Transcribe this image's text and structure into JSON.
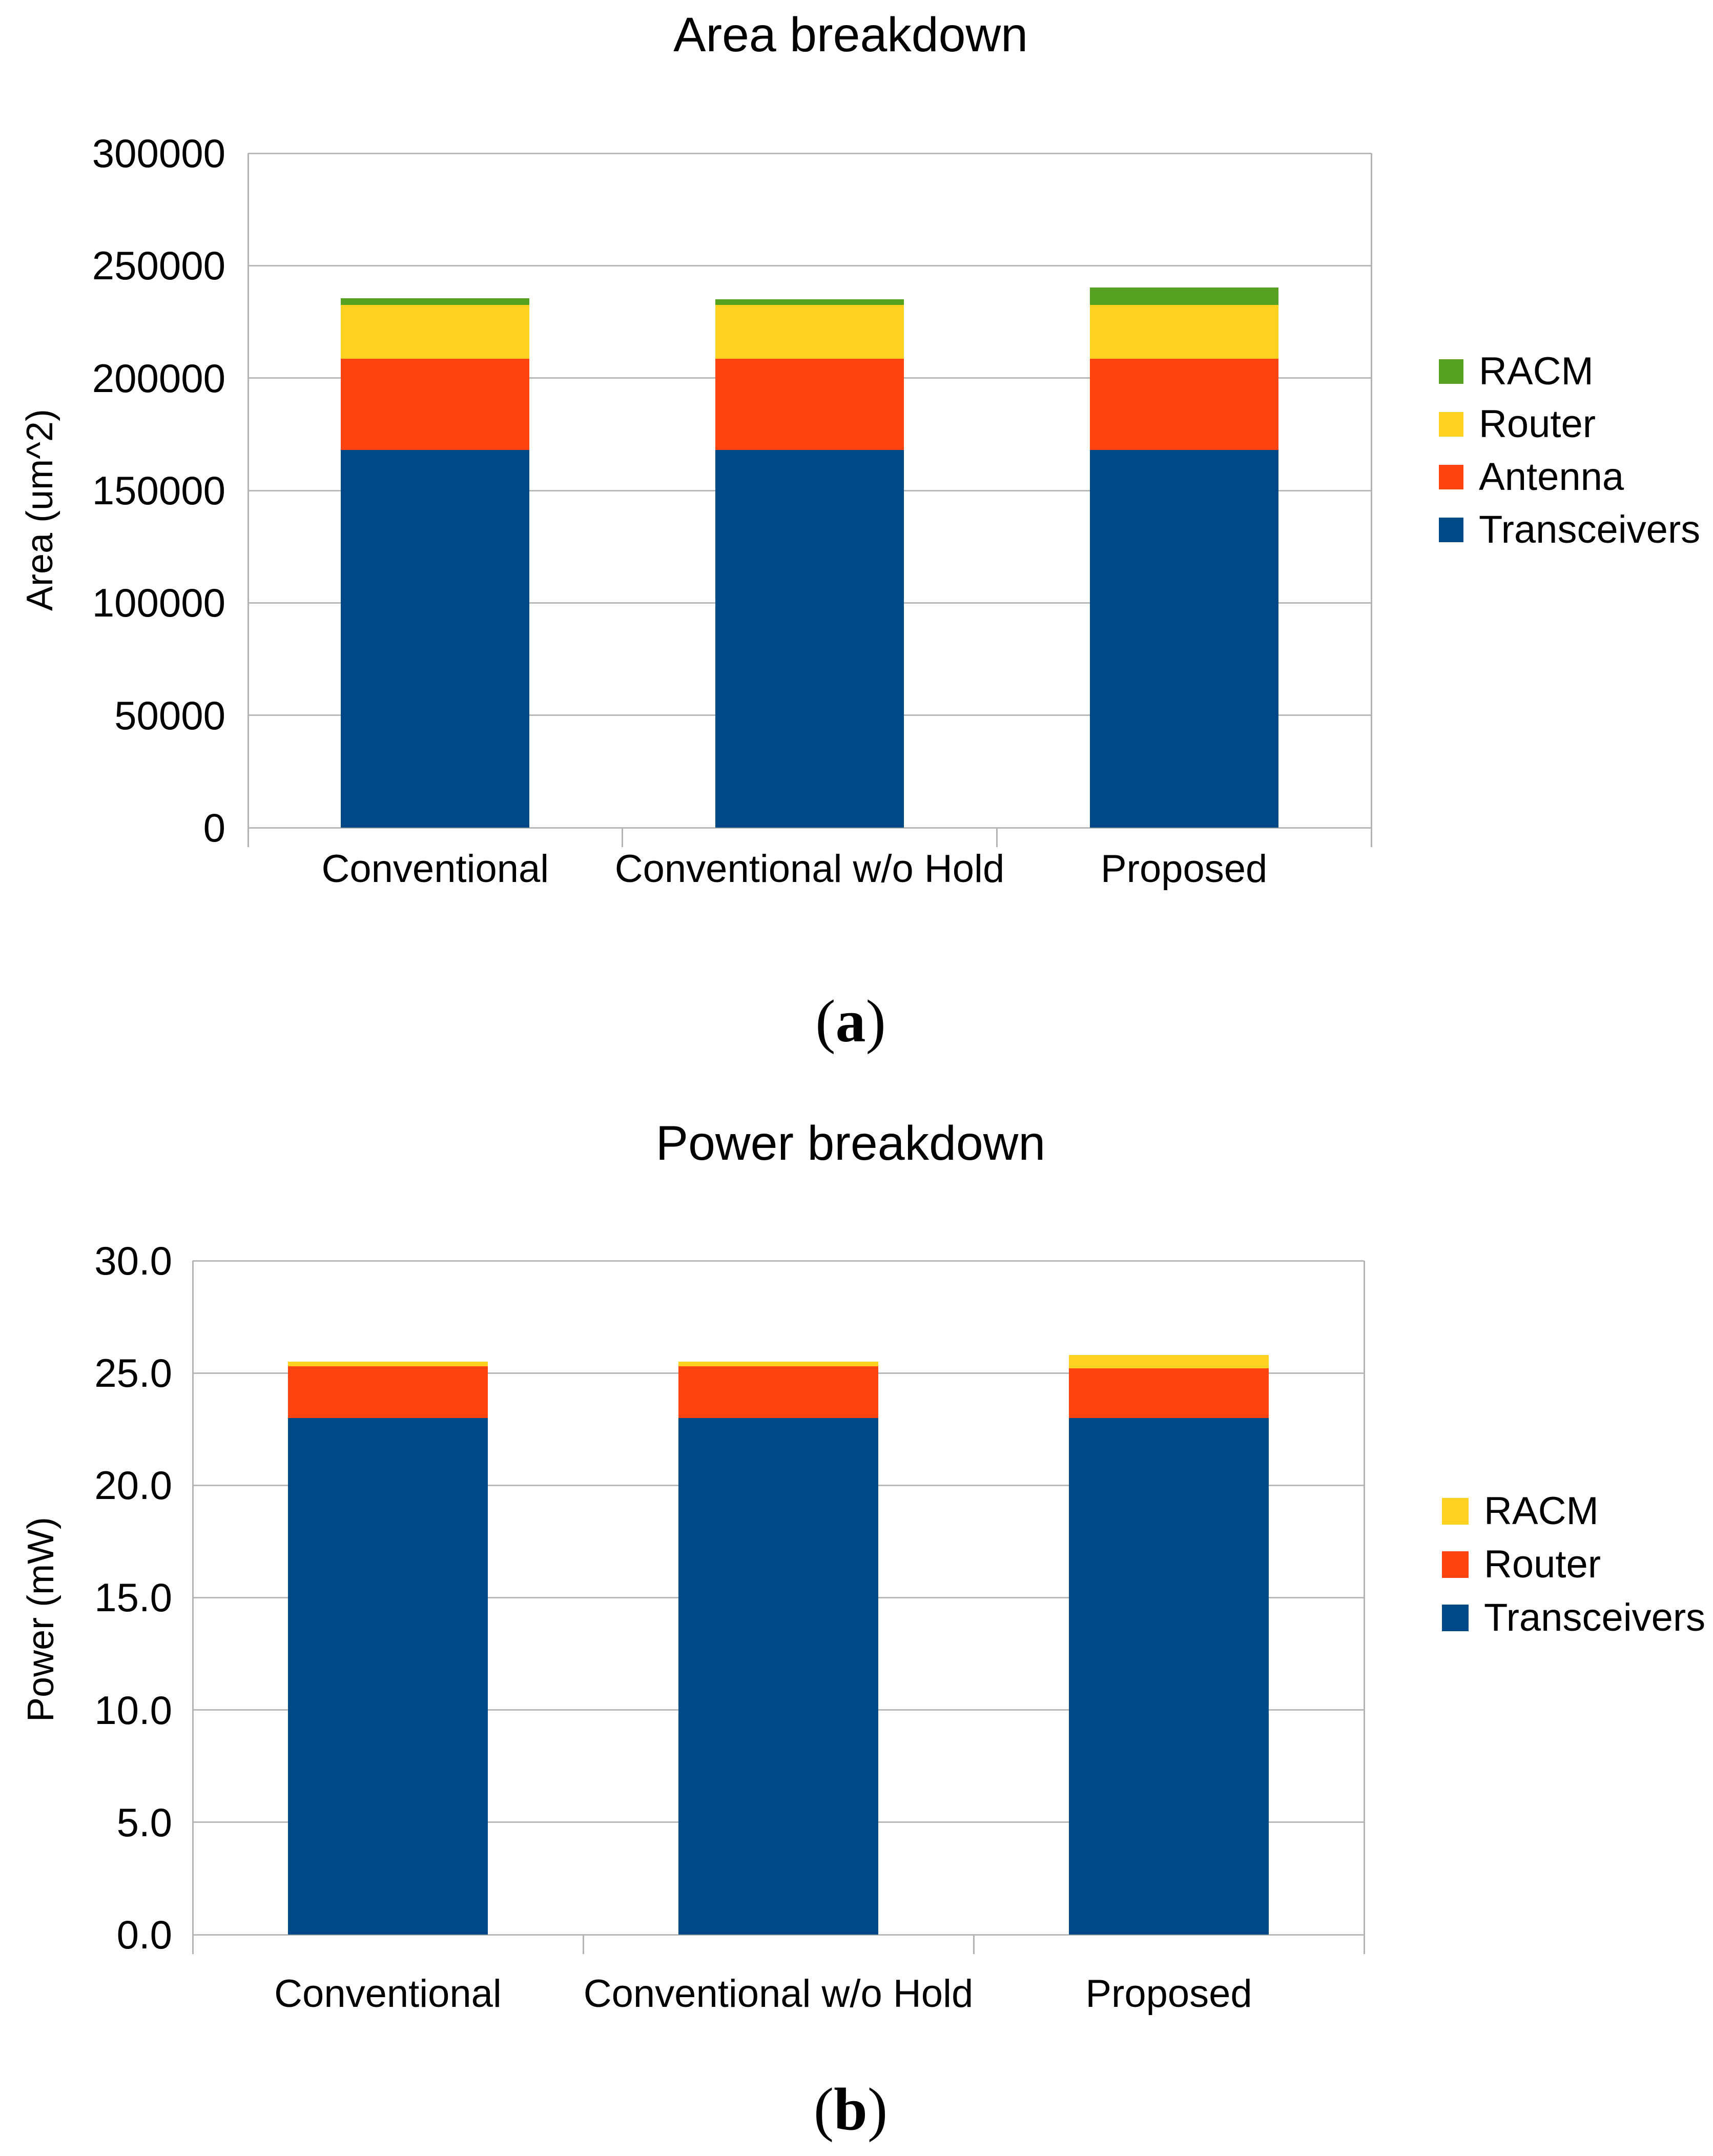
{
  "page": {
    "background": "#ffffff"
  },
  "colors": {
    "gridline": "#b9b9b9",
    "axis": "#b3b3b3",
    "text": "#000000"
  },
  "chart_data": [
    {
      "type": "bar",
      "stacked": true,
      "title": "Area breakdown",
      "ylabel": "Area (um^2)",
      "xlabel": "",
      "caption": "(a)",
      "categories": [
        "Conventional",
        "Conventional w/o Hold",
        "Proposed"
      ],
      "series": [
        {
          "name": "Transceivers",
          "color": "#004987",
          "values": [
            168000,
            168000,
            168000
          ]
        },
        {
          "name": "Antenna",
          "color": "#FD430F",
          "values": [
            40500,
            40500,
            40500
          ]
        },
        {
          "name": "Router",
          "color": "#FFD222",
          "values": [
            24000,
            24000,
            24000
          ]
        },
        {
          "name": "RACM",
          "color": "#56A022",
          "values": [
            3000,
            2500,
            7800
          ]
        }
      ],
      "legend_order": [
        "RACM",
        "Router",
        "Antenna",
        "Transceivers"
      ],
      "legend_position": "right",
      "grid": true,
      "ylim": [
        0,
        300000
      ],
      "ytick_step": 50000,
      "ytick_labels": [
        "0",
        "50000",
        "100000",
        "150000",
        "200000",
        "250000",
        "300000"
      ]
    },
    {
      "type": "bar",
      "stacked": true,
      "title": "Power breakdown",
      "ylabel": "Power (mW)",
      "xlabel": "",
      "caption": "(b)",
      "categories": [
        "Conventional",
        "Conventional w/o Hold",
        "Proposed"
      ],
      "series": [
        {
          "name": "Transceivers",
          "color": "#004987",
          "values": [
            23.0,
            23.0,
            23.0
          ]
        },
        {
          "name": "Router",
          "color": "#FD430F",
          "values": [
            2.3,
            2.3,
            2.2
          ]
        },
        {
          "name": "RACM",
          "color": "#FFD222",
          "values": [
            0.2,
            0.2,
            0.6
          ]
        }
      ],
      "legend_order": [
        "RACM",
        "Router",
        "Transceivers"
      ],
      "legend_position": "right",
      "grid": true,
      "ylim": [
        0,
        30
      ],
      "ytick_step": 5,
      "ytick_labels": [
        "0.0",
        "5.0",
        "10.0",
        "15.0",
        "20.0",
        "25.0",
        "30.0"
      ]
    }
  ]
}
